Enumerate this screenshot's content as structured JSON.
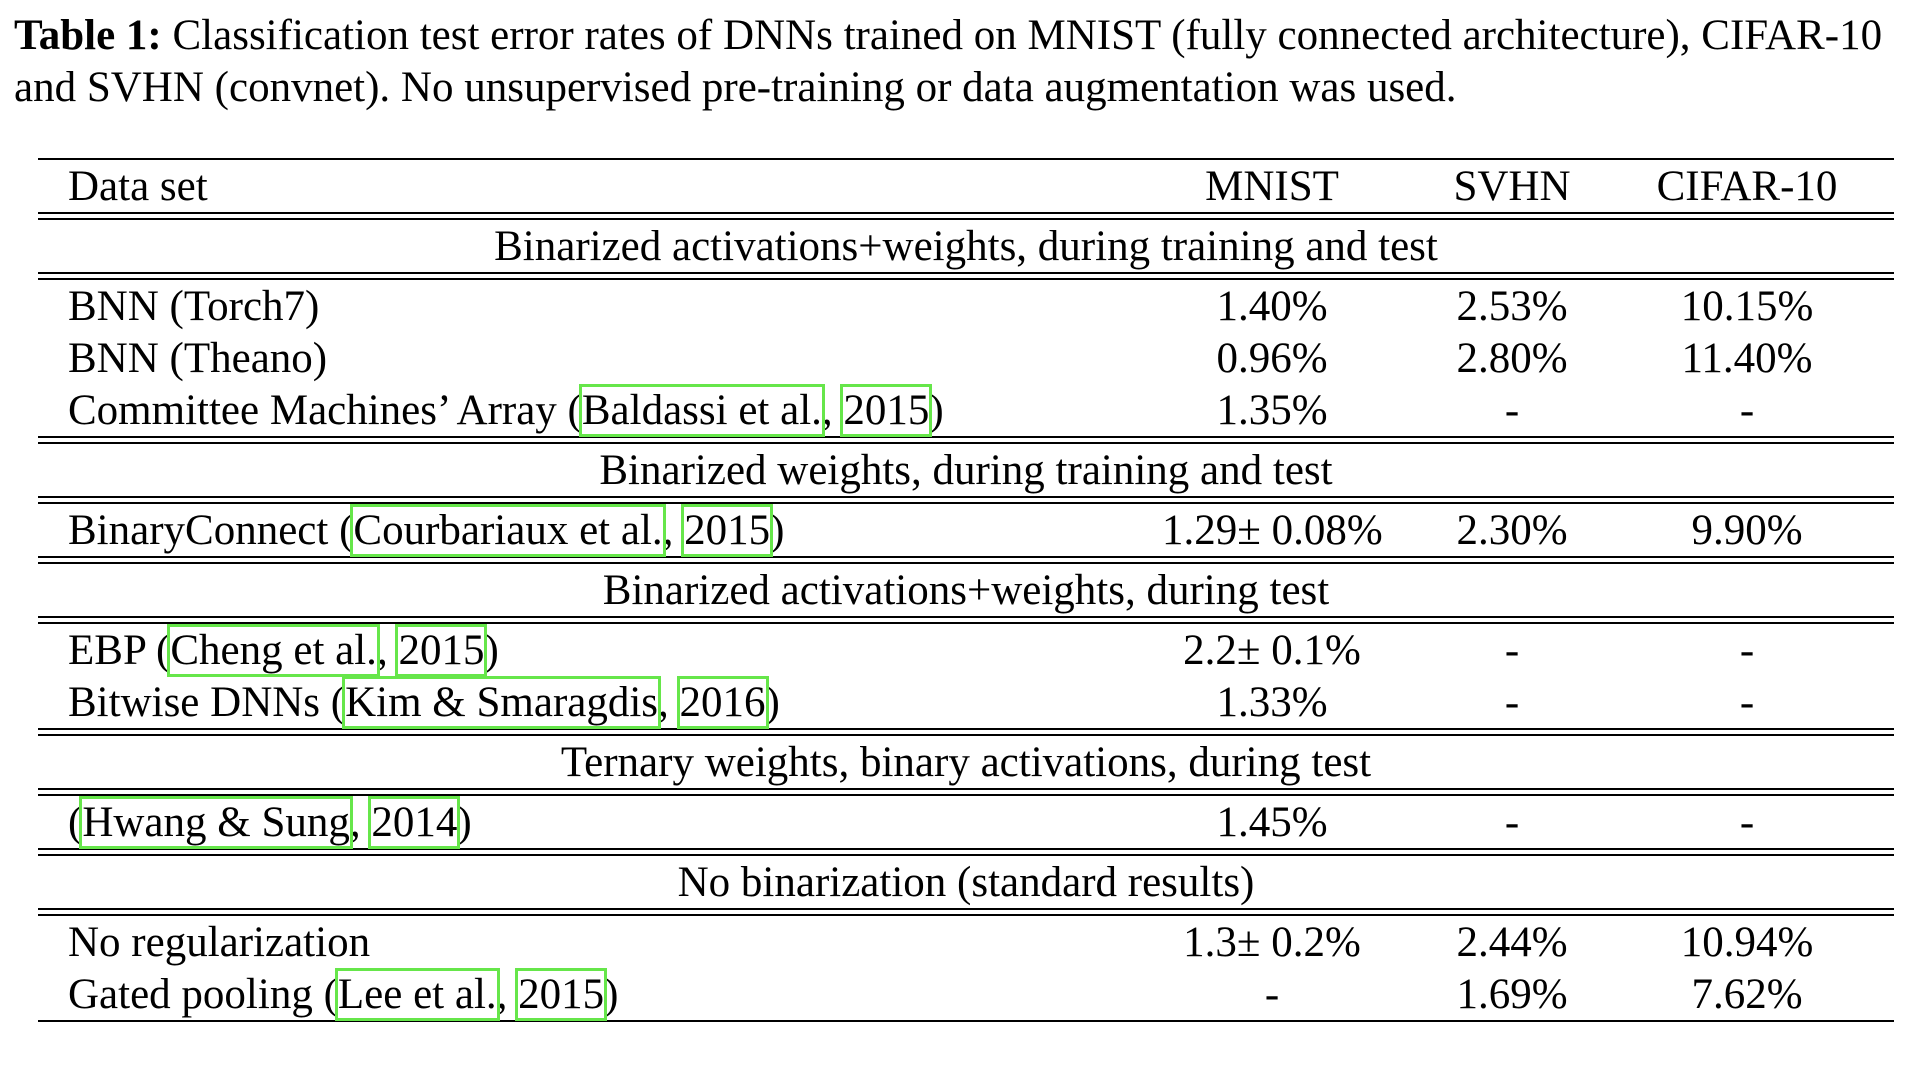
{
  "caption": {
    "label": "Table 1:",
    "text": " Classification test error rates of DNNs trained on MNIST (fully connected architecture), CIFAR-10 and SVHN (convnet). No unsupervised pre-training or data augmentation was used."
  },
  "header": {
    "dataset": "Data set",
    "mnist": "MNIST",
    "svhn": "SVHN",
    "cifar": "CIFAR-10"
  },
  "sections": {
    "s1": "Binarized activations+weights, during training and test",
    "s2": "Binarized weights, during training and test",
    "s3": "Binarized activations+weights, during test",
    "s4": "Ternary weights, binary activations, during test",
    "s5": "No binarization (standard results)"
  },
  "rows": {
    "r1": {
      "name": "BNN (Torch7)",
      "mnist": "1.40%",
      "svhn": "2.53%",
      "cifar": "10.15%"
    },
    "r2": {
      "name": "BNN (Theano)",
      "mnist": "0.96%",
      "svhn": "2.80%",
      "cifar": "11.40%"
    },
    "r3": {
      "pre": "Committee Machines’ Array (",
      "auth": "Baldassi et al.",
      "sep": ", ",
      "year": "2015",
      "post": ")",
      "mnist": "1.35%",
      "svhn": "-",
      "cifar": "-"
    },
    "r4": {
      "pre": "BinaryConnect (",
      "auth": "Courbariaux et al.",
      "sep": ", ",
      "year": "2015",
      "post": ")",
      "mnist": "1.29± 0.08%",
      "svhn": "2.30%",
      "cifar": "9.90%"
    },
    "r5": {
      "pre": "EBP (",
      "auth": "Cheng et al.",
      "sep": ", ",
      "year": "2015",
      "post": ")",
      "mnist": "2.2± 0.1%",
      "svhn": "-",
      "cifar": "-"
    },
    "r6": {
      "pre": "Bitwise DNNs (",
      "auth": "Kim & Smaragdis",
      "sep": ", ",
      "year": "2016",
      "post": ")",
      "mnist": "1.33%",
      "svhn": "-",
      "cifar": "-"
    },
    "r7": {
      "pre": "(",
      "auth": "Hwang & Sung",
      "sep": ", ",
      "year": "2014",
      "post": ")",
      "mnist": "1.45%",
      "svhn": "-",
      "cifar": "-"
    },
    "r8": {
      "name": "No regularization",
      "mnist": "1.3± 0.2%",
      "svhn": "2.44%",
      "cifar": "10.94%"
    },
    "r9": {
      "pre": "Gated pooling (",
      "auth": "Lee et al.",
      "sep": ", ",
      "year": "2015",
      "post": ")",
      "mnist": "-",
      "svhn": "1.69%",
      "cifar": "7.62%"
    }
  },
  "colors": {
    "citation_box": "#66e64a"
  }
}
